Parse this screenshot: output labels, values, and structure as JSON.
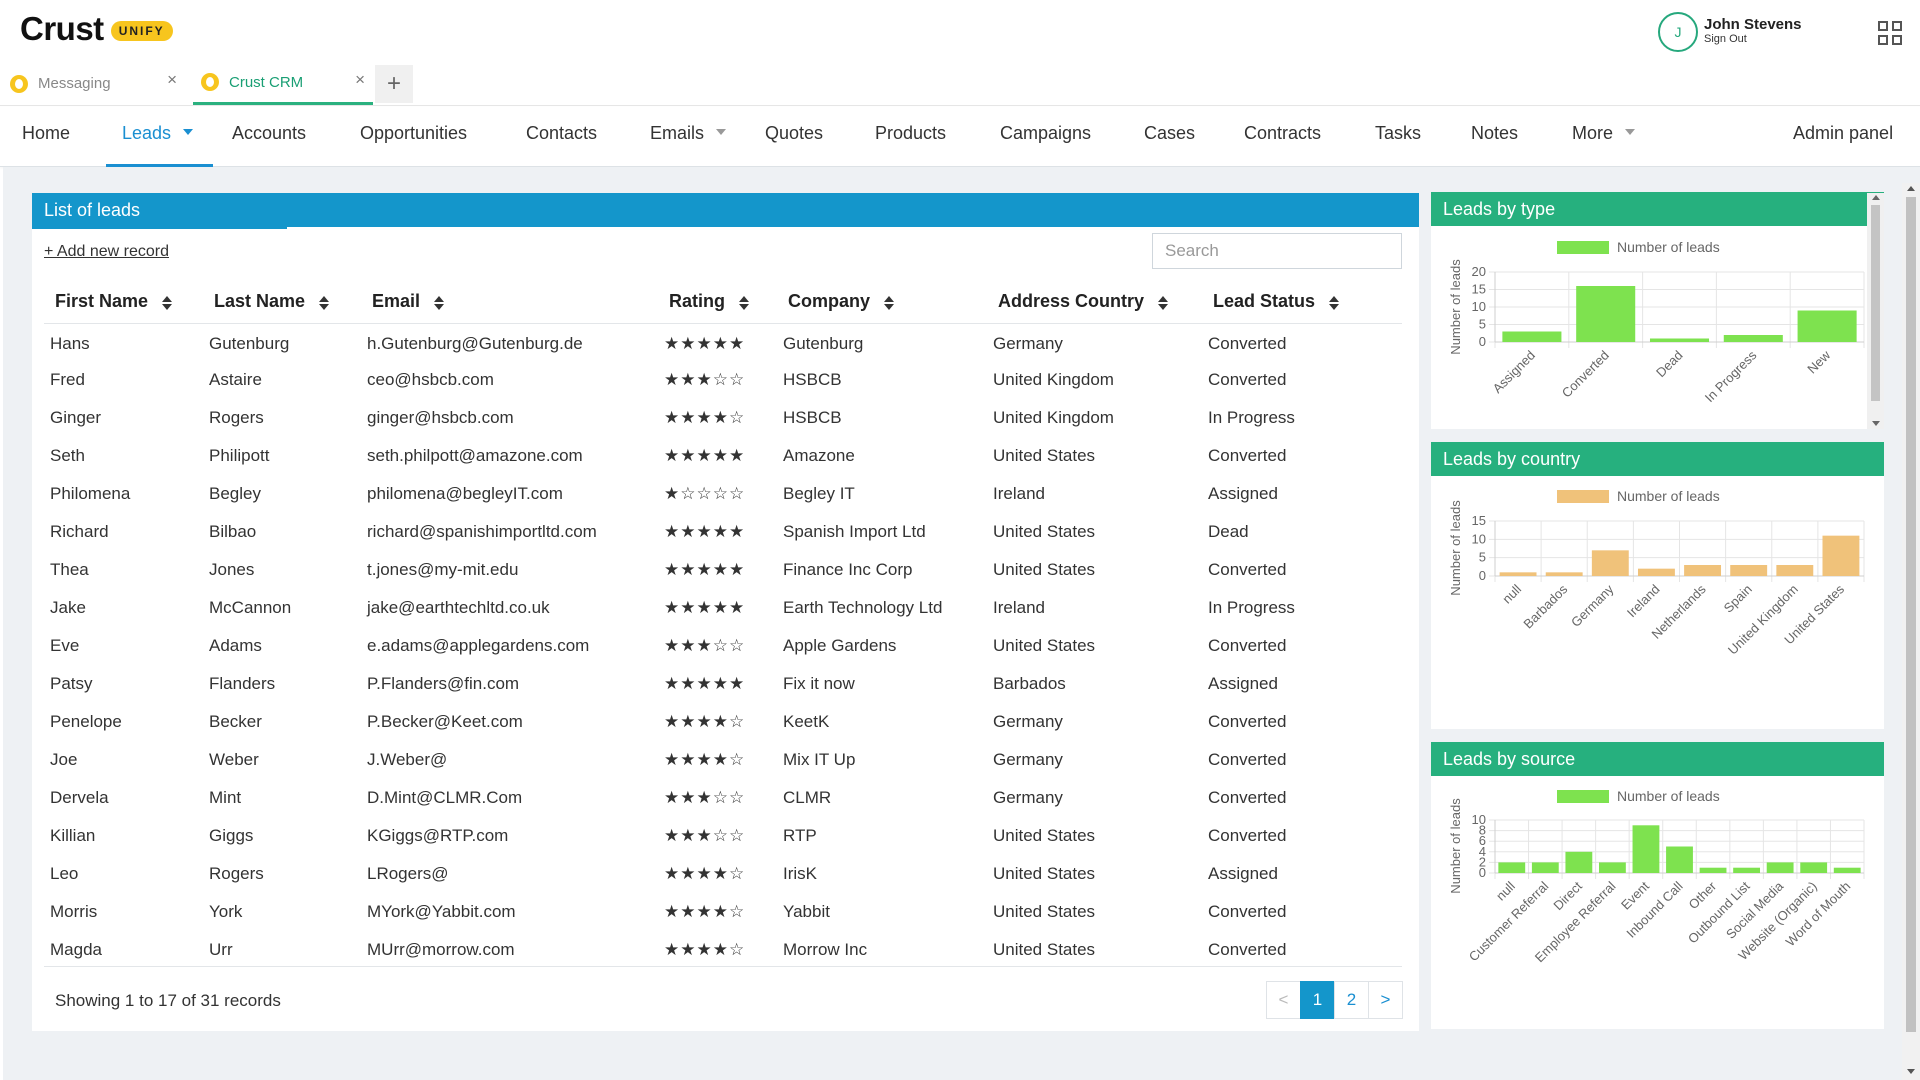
{
  "header": {
    "logo_text": "Crust",
    "logo_badge": "UNIFY",
    "user_initial": "J",
    "user_name": "John Stevens",
    "sign_out": "Sign Out"
  },
  "tabs": [
    {
      "label": "Messaging",
      "close": "×"
    },
    {
      "label": "Crust CRM",
      "close": "×"
    }
  ],
  "tab_add": "+",
  "nav": {
    "home": "Home",
    "leads": "Leads",
    "accounts": "Accounts",
    "opportunities": "Opportunities",
    "contacts": "Contacts",
    "emails": "Emails",
    "quotes": "Quotes",
    "products": "Products",
    "campaigns": "Campaigns",
    "cases": "Cases",
    "contracts": "Contracts",
    "tasks": "Tasks",
    "notes": "Notes",
    "more": "More",
    "admin": "Admin panel"
  },
  "leads": {
    "panel_title": "List of leads",
    "add_new": "+ Add new record",
    "search_placeholder": "Search",
    "columns": [
      "First Name",
      "Last Name",
      "Email",
      "Rating",
      "Company",
      "Address Country",
      "Lead Status"
    ],
    "rows": [
      {
        "first": "Hans",
        "last": "Gutenburg",
        "email": "h.Gutenburg@Gutenburg.de",
        "rating": "★★★★★",
        "company": "Gutenburg",
        "country": "Germany",
        "status": "Converted"
      },
      {
        "first": "Fred",
        "last": "Astaire",
        "email": "ceo@hsbcb.com",
        "rating": "★★★☆☆",
        "company": "HSBCB",
        "country": "United Kingdom",
        "status": "Converted"
      },
      {
        "first": "Ginger",
        "last": "Rogers",
        "email": "ginger@hsbcb.com",
        "rating": "★★★★☆",
        "company": "HSBCB",
        "country": "United Kingdom",
        "status": "In Progress"
      },
      {
        "first": "Seth",
        "last": "Philipott",
        "email": "seth.philpott@amazone.com",
        "rating": "★★★★★",
        "company": "Amazone",
        "country": "United States",
        "status": "Converted"
      },
      {
        "first": "Philomena",
        "last": "Begley",
        "email": "philomena@begleyIT.com",
        "rating": "★☆☆☆☆",
        "company": "Begley IT",
        "country": "Ireland",
        "status": "Assigned"
      },
      {
        "first": "Richard",
        "last": "Bilbao",
        "email": "richard@spanishimportltd.com",
        "rating": "★★★★★",
        "company": "Spanish Import Ltd",
        "country": "United States",
        "status": "Dead"
      },
      {
        "first": "Thea",
        "last": "Jones",
        "email": "t.jones@my-mit.edu",
        "rating": "★★★★★",
        "company": "Finance Inc Corp",
        "country": "United States",
        "status": "Converted"
      },
      {
        "first": "Jake",
        "last": "McCannon",
        "email": "jake@earthtechltd.co.uk",
        "rating": "★★★★★",
        "company": "Earth Technology Ltd",
        "country": "Ireland",
        "status": "In Progress"
      },
      {
        "first": "Eve",
        "last": "Adams",
        "email": "e.adams@applegardens.com",
        "rating": "★★★☆☆",
        "company": "Apple Gardens",
        "country": "United States",
        "status": "Converted"
      },
      {
        "first": "Patsy",
        "last": "Flanders",
        "email": "P.Flanders@fin.com",
        "rating": "★★★★★",
        "company": "Fix it now",
        "country": "Barbados",
        "status": "Assigned"
      },
      {
        "first": "Penelope",
        "last": "Becker",
        "email": "P.Becker@Keet.com",
        "rating": "★★★★☆",
        "company": "KeetK",
        "country": "Germany",
        "status": "Converted"
      },
      {
        "first": "Joe",
        "last": "Weber",
        "email": "J.Weber@",
        "rating": "★★★★☆",
        "company": "Mix IT Up",
        "country": "Germany",
        "status": "Converted"
      },
      {
        "first": "Dervela",
        "last": "Mint",
        "email": "D.Mint@CLMR.Com",
        "rating": "★★★☆☆",
        "company": "CLMR",
        "country": "Germany",
        "status": "Converted"
      },
      {
        "first": "Killian",
        "last": "Giggs",
        "email": "KGiggs@RTP.com",
        "rating": "★★★☆☆",
        "company": "RTP",
        "country": "United States",
        "status": "Converted"
      },
      {
        "first": "Leo",
        "last": "Rogers",
        "email": "LRogers@",
        "rating": "★★★★☆",
        "company": "IrisK",
        "country": "United States",
        "status": "Assigned"
      },
      {
        "first": "Morris",
        "last": "York",
        "email": "MYork@Yabbit.com",
        "rating": "★★★★☆",
        "company": "Yabbit",
        "country": "United States",
        "status": "Converted"
      },
      {
        "first": "Magda",
        "last": "Urr",
        "email": "MUrr@morrow.com",
        "rating": "★★★★☆",
        "company": "Morrow Inc",
        "country": "United States",
        "status": "Converted"
      }
    ],
    "showing": "Showing 1 to 17 of 31 records",
    "pager": {
      "prev": "<",
      "pages": [
        "1",
        "2"
      ],
      "next": ">"
    }
  },
  "chart_data": [
    {
      "type": "bar",
      "title": "Leads by type",
      "ylabel": "Number of leads",
      "legend": "top",
      "color": "#7ee24f",
      "categories": [
        "Assigned",
        "Converted",
        "Dead",
        "In Progress",
        "New"
      ],
      "series": [
        {
          "name": "Number of leads",
          "values": [
            3,
            16,
            1,
            2,
            9
          ]
        }
      ],
      "ylim": [
        0,
        20
      ],
      "yticks": [
        0,
        5,
        10,
        15,
        20
      ],
      "grid": true
    },
    {
      "type": "bar",
      "title": "Leads by country",
      "ylabel": "Number of leads",
      "legend": "top",
      "color": "#f0c27a",
      "categories": [
        "null",
        "Barbados",
        "Germany",
        "Ireland",
        "Netherlands",
        "Spain",
        "United Kingdom",
        "United States"
      ],
      "series": [
        {
          "name": "Number of leads",
          "values": [
            1,
            1,
            7,
            2,
            3,
            3,
            3,
            11
          ]
        }
      ],
      "ylim": [
        0,
        15
      ],
      "yticks": [
        0,
        5,
        10,
        15
      ],
      "grid": true
    },
    {
      "type": "bar",
      "title": "Leads by source",
      "ylabel": "Number of leads",
      "legend": "top",
      "color": "#7ee24f",
      "categories": [
        "null",
        "Customer Referral",
        "Direct",
        "Employee Referral",
        "Event",
        "Inbound Call",
        "Other",
        "Outbound List",
        "Social Media",
        "Website (Organic)",
        "Word of Mouth"
      ],
      "series": [
        {
          "name": "Number of leads",
          "values": [
            2,
            2,
            4,
            2,
            9,
            5,
            1,
            1,
            2,
            2,
            1
          ]
        }
      ],
      "ylim": [
        0,
        10
      ],
      "yticks": [
        0,
        2,
        4,
        6,
        8,
        10
      ],
      "grid": true
    }
  ]
}
